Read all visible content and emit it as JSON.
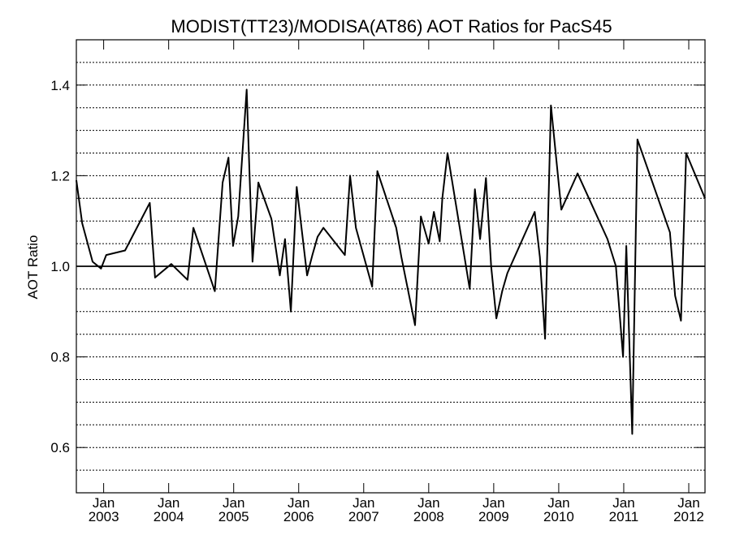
{
  "chart_data": {
    "type": "line",
    "title": "MODIST(TT23)/MODISA(AT86)  AOT Ratios for PacS45",
    "ylabel": "AOT Ratio",
    "xlabel": "",
    "ylim": [
      0.5,
      1.5
    ],
    "yticks": [
      0.6,
      0.8,
      1.0,
      1.2,
      1.4
    ],
    "ytick_labels": [
      "0.6",
      "0.8",
      "1.0",
      "1.2",
      "1.4"
    ],
    "y_gridlines": [
      0.55,
      0.6,
      0.65,
      0.7,
      0.75,
      0.8,
      0.85,
      0.9,
      0.95,
      1.05,
      1.1,
      1.15,
      1.2,
      1.25,
      1.3,
      1.35,
      1.4,
      1.45
    ],
    "reference_line": 1.0,
    "xlim": [
      2002.58,
      2012.25
    ],
    "xticks": [
      {
        "pos": 2003.0,
        "month": "Jan",
        "year": "2003"
      },
      {
        "pos": 2004.0,
        "month": "Jan",
        "year": "2004"
      },
      {
        "pos": 2005.0,
        "month": "Jan",
        "year": "2005"
      },
      {
        "pos": 2006.0,
        "month": "Jan",
        "year": "2006"
      },
      {
        "pos": 2007.0,
        "month": "Jan",
        "year": "2007"
      },
      {
        "pos": 2008.0,
        "month": "Jan",
        "year": "2008"
      },
      {
        "pos": 2009.0,
        "month": "Jan",
        "year": "2009"
      },
      {
        "pos": 2010.0,
        "month": "Jan",
        "year": "2010"
      },
      {
        "pos": 2011.0,
        "month": "Jan",
        "year": "2011"
      },
      {
        "pos": 2012.0,
        "month": "Jan",
        "year": "2012"
      }
    ],
    "grid": true,
    "series": [
      {
        "x": [
          2002.58,
          2002.67,
          2002.83,
          2002.96,
          2003.04,
          2003.33,
          2003.71,
          2003.79,
          2004.04,
          2004.29,
          2004.38,
          2004.71,
          2004.83,
          2004.92,
          2004.99,
          2005.07,
          2005.2,
          2005.29,
          2005.38,
          2005.58,
          2005.71,
          2005.79,
          2005.88,
          2005.97,
          2006.13,
          2006.21,
          2006.29,
          2006.38,
          2006.71,
          2006.79,
          2006.88,
          2007.13,
          2007.21,
          2007.5,
          2007.58,
          2007.79,
          2007.88,
          2008.0,
          2008.08,
          2008.17,
          2008.21,
          2008.29,
          2008.63,
          2008.71,
          2008.79,
          2008.88,
          2008.96,
          2009.04,
          2009.13,
          2009.21,
          2009.63,
          2009.71,
          2009.79,
          2009.88,
          2010.04,
          2010.29,
          2010.75,
          2010.88,
          2010.99,
          2011.04,
          2011.13,
          2011.21,
          2011.71,
          2011.79,
          2011.88,
          2011.96,
          2012.25
        ],
        "y": [
          1.19,
          1.095,
          1.01,
          0.995,
          1.025,
          1.035,
          1.14,
          0.975,
          1.005,
          0.97,
          1.085,
          0.945,
          1.185,
          1.24,
          1.045,
          1.11,
          1.39,
          1.01,
          1.185,
          1.105,
          0.98,
          1.06,
          0.9,
          1.175,
          0.98,
          1.025,
          1.065,
          1.085,
          1.025,
          1.2,
          1.085,
          0.955,
          1.21,
          1.085,
          1.02,
          0.87,
          1.11,
          1.05,
          1.12,
          1.055,
          1.15,
          1.25,
          0.95,
          1.17,
          1.06,
          1.195,
          1.0,
          0.885,
          0.945,
          0.985,
          1.12,
          1.02,
          0.84,
          1.355,
          1.125,
          1.205,
          1.06,
          1.0,
          0.8,
          1.045,
          0.63,
          1.28,
          1.075,
          0.935,
          0.88,
          1.25,
          1.15
        ]
      }
    ]
  }
}
